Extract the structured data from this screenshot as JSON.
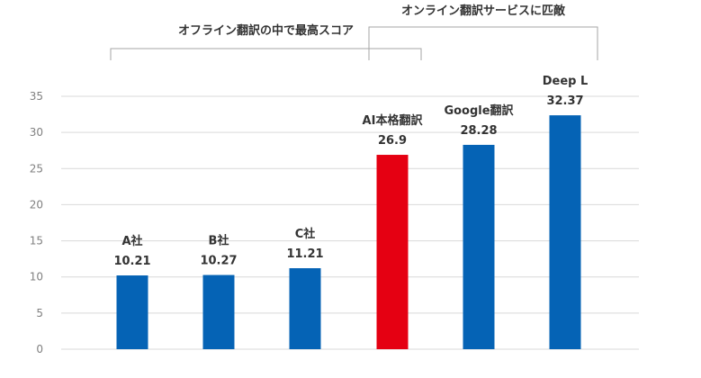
{
  "chart_data": {
    "type": "bar",
    "categories": [
      "A社",
      "B社",
      "C社",
      "AI本格翻訳",
      "Google翻訳",
      "Deep L"
    ],
    "values": [
      10.21,
      10.27,
      11.21,
      26.9,
      28.28,
      32.37
    ],
    "value_labels": [
      "10.21",
      "10.27",
      "11.21",
      "26.9",
      "28.28",
      "32.37"
    ],
    "bar_colors": [
      "#0563b5",
      "#0563b5",
      "#0563b5",
      "#e50012",
      "#0563b5",
      "#0563b5"
    ],
    "ylim": [
      0,
      35
    ],
    "yticks": [
      0,
      5,
      10,
      15,
      20,
      25,
      30,
      35
    ],
    "ytick_labels": [
      "0",
      "5",
      "10",
      "15",
      "20",
      "25",
      "30",
      "35"
    ],
    "grid": true,
    "title": "",
    "xlabel": "",
    "ylabel": "",
    "annotations": [
      {
        "text": "オフライン翻訳の中で最高スコア",
        "from_category": "A社",
        "to_category": "AI本格翻訳"
      },
      {
        "text": "オンライン翻訳サービスに匹敵",
        "from_category": "AI本格翻訳",
        "to_category": "Deep L"
      }
    ]
  },
  "colors": {
    "primary_bar": "#0563b5",
    "highlight_bar": "#e50012",
    "grid": "#d9d9d9",
    "bracket": "#a6a6a6"
  }
}
